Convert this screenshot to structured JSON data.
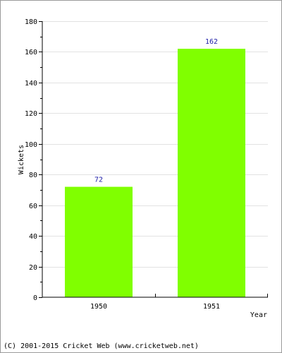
{
  "chart_data": {
    "type": "bar",
    "categories": [
      "1950",
      "1951"
    ],
    "values": [
      72,
      162
    ],
    "xlabel": "Year",
    "ylabel": "Wickets",
    "ylim": [
      0,
      180
    ],
    "yticks": [
      0,
      20,
      40,
      60,
      80,
      100,
      120,
      140,
      160,
      180
    ],
    "grid": true,
    "bar_color": "#80ff00",
    "value_label_color": "#1a1aa6"
  },
  "footer": {
    "copyright": "(C) 2001-2015 Cricket Web (www.cricketweb.net)"
  }
}
